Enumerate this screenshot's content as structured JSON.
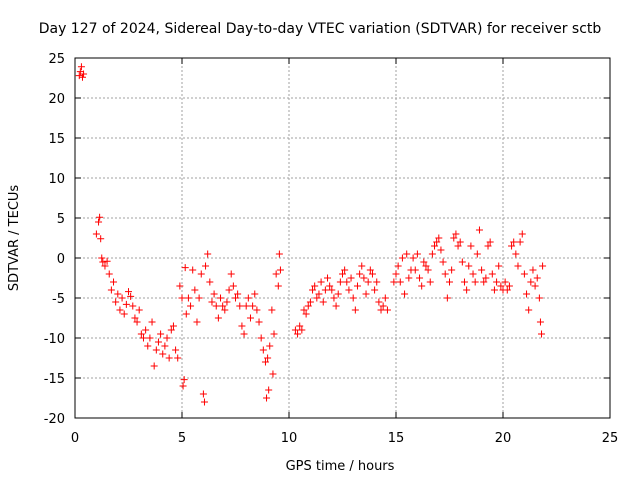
{
  "chart_data": {
    "type": "scatter",
    "title": "Day 127 of 2024, Sidereal Day-to-day VTEC variation (SDTVAR) for receiver sctb",
    "xlabel": "GPS time / hours",
    "ylabel": "SDTVAR / TECUs",
    "xlim": [
      0,
      25
    ],
    "ylim": [
      -20,
      25
    ],
    "x_ticks": [
      0,
      5,
      10,
      15,
      20,
      25
    ],
    "y_ticks": [
      -20,
      -15,
      -10,
      -5,
      0,
      5,
      10,
      15,
      20,
      25
    ],
    "grid": true,
    "marker": "plus",
    "color": "#ff0000",
    "series": [
      {
        "name": "sctb",
        "points": [
          [
            0.2,
            22.8
          ],
          [
            0.25,
            23.3
          ],
          [
            0.3,
            23.9
          ],
          [
            0.35,
            22.6
          ],
          [
            0.4,
            23.0
          ],
          [
            1.0,
            3.0
          ],
          [
            1.1,
            4.5
          ],
          [
            1.15,
            5.1
          ],
          [
            1.2,
            2.4
          ],
          [
            1.25,
            0.0
          ],
          [
            1.3,
            -0.5
          ],
          [
            1.4,
            -1.0
          ],
          [
            1.5,
            -0.4
          ],
          [
            1.6,
            -2.0
          ],
          [
            1.7,
            -4.0
          ],
          [
            1.8,
            -3.0
          ],
          [
            1.9,
            -5.5
          ],
          [
            2.0,
            -4.5
          ],
          [
            2.1,
            -6.5
          ],
          [
            2.2,
            -5.0
          ],
          [
            2.3,
            -7.0
          ],
          [
            2.4,
            -5.8
          ],
          [
            2.5,
            -4.2
          ],
          [
            2.6,
            -4.8
          ],
          [
            2.7,
            -6.0
          ],
          [
            2.8,
            -7.5
          ],
          [
            2.9,
            -8.0
          ],
          [
            3.0,
            -6.5
          ],
          [
            3.1,
            -9.5
          ],
          [
            3.2,
            -10.0
          ],
          [
            3.3,
            -9.0
          ],
          [
            3.4,
            -11.0
          ],
          [
            3.5,
            -10.0
          ],
          [
            3.6,
            -8.0
          ],
          [
            3.7,
            -13.5
          ],
          [
            3.8,
            -11.5
          ],
          [
            3.9,
            -10.5
          ],
          [
            4.0,
            -9.5
          ],
          [
            4.1,
            -12.0
          ],
          [
            4.2,
            -11.0
          ],
          [
            4.3,
            -10.0
          ],
          [
            4.4,
            -12.5
          ],
          [
            4.5,
            -9.0
          ],
          [
            4.6,
            -8.5
          ],
          [
            4.7,
            -11.5
          ],
          [
            4.8,
            -12.5
          ],
          [
            4.9,
            -3.5
          ],
          [
            5.0,
            -5.0
          ],
          [
            5.05,
            -16.0
          ],
          [
            5.1,
            -15.2
          ],
          [
            5.15,
            -1.2
          ],
          [
            5.2,
            -7.0
          ],
          [
            5.3,
            -5.0
          ],
          [
            5.4,
            -6.0
          ],
          [
            5.5,
            -1.5
          ],
          [
            5.6,
            -4.0
          ],
          [
            5.7,
            -8.0
          ],
          [
            5.8,
            -5.0
          ],
          [
            5.9,
            -2.0
          ],
          [
            6.0,
            -17.0
          ],
          [
            6.05,
            -18.0
          ],
          [
            6.1,
            -1.0
          ],
          [
            6.2,
            0.5
          ],
          [
            6.3,
            -3.0
          ],
          [
            6.4,
            -5.5
          ],
          [
            6.5,
            -4.5
          ],
          [
            6.6,
            -6.0
          ],
          [
            6.7,
            -7.5
          ],
          [
            6.8,
            -5.0
          ],
          [
            6.9,
            -6.0
          ],
          [
            7.0,
            -6.5
          ],
          [
            7.1,
            -5.5
          ],
          [
            7.2,
            -4.0
          ],
          [
            7.3,
            -2.0
          ],
          [
            7.4,
            -3.5
          ],
          [
            7.5,
            -5.0
          ],
          [
            7.6,
            -4.5
          ],
          [
            7.7,
            -6.0
          ],
          [
            7.8,
            -8.5
          ],
          [
            7.9,
            -9.5
          ],
          [
            8.0,
            -6.0
          ],
          [
            8.1,
            -5.0
          ],
          [
            8.2,
            -7.5
          ],
          [
            8.3,
            -6.0
          ],
          [
            8.4,
            -4.5
          ],
          [
            8.5,
            -6.5
          ],
          [
            8.6,
            -8.0
          ],
          [
            8.7,
            -10.0
          ],
          [
            8.8,
            -11.5
          ],
          [
            8.9,
            -13.0
          ],
          [
            8.95,
            -17.5
          ],
          [
            9.0,
            -12.5
          ],
          [
            9.05,
            -16.5
          ],
          [
            9.1,
            -11.0
          ],
          [
            9.2,
            -6.5
          ],
          [
            9.25,
            -14.5
          ],
          [
            9.3,
            -9.5
          ],
          [
            9.4,
            -2.0
          ],
          [
            9.5,
            -3.5
          ],
          [
            9.55,
            0.5
          ],
          [
            9.6,
            -1.5
          ],
          [
            10.3,
            -9.0
          ],
          [
            10.4,
            -9.5
          ],
          [
            10.5,
            -8.5
          ],
          [
            10.6,
            -9.0
          ],
          [
            10.7,
            -6.5
          ],
          [
            10.8,
            -7.0
          ],
          [
            10.9,
            -6.0
          ],
          [
            11.0,
            -5.5
          ],
          [
            11.1,
            -4.0
          ],
          [
            11.2,
            -3.5
          ],
          [
            11.3,
            -5.0
          ],
          [
            11.4,
            -4.5
          ],
          [
            11.5,
            -3.0
          ],
          [
            11.6,
            -5.5
          ],
          [
            11.7,
            -4.0
          ],
          [
            11.8,
            -2.5
          ],
          [
            11.9,
            -3.5
          ],
          [
            12.0,
            -4.0
          ],
          [
            12.1,
            -5.0
          ],
          [
            12.2,
            -6.0
          ],
          [
            12.3,
            -4.5
          ],
          [
            12.4,
            -3.0
          ],
          [
            12.5,
            -2.0
          ],
          [
            12.6,
            -1.5
          ],
          [
            12.7,
            -3.0
          ],
          [
            12.8,
            -4.0
          ],
          [
            12.9,
            -2.5
          ],
          [
            13.0,
            -5.0
          ],
          [
            13.1,
            -6.5
          ],
          [
            13.2,
            -3.5
          ],
          [
            13.3,
            -2.0
          ],
          [
            13.4,
            -1.0
          ],
          [
            13.5,
            -2.5
          ],
          [
            13.6,
            -4.5
          ],
          [
            13.7,
            -3.0
          ],
          [
            13.8,
            -1.5
          ],
          [
            13.9,
            -2.0
          ],
          [
            14.0,
            -4.0
          ],
          [
            14.1,
            -3.0
          ],
          [
            14.2,
            -5.5
          ],
          [
            14.3,
            -6.5
          ],
          [
            14.4,
            -6.0
          ],
          [
            14.5,
            -5.0
          ],
          [
            14.6,
            -6.5
          ],
          [
            14.9,
            -3.0
          ],
          [
            15.0,
            -2.0
          ],
          [
            15.1,
            -1.0
          ],
          [
            15.2,
            -3.0
          ],
          [
            15.3,
            0.0
          ],
          [
            15.4,
            -4.5
          ],
          [
            15.5,
            0.5
          ],
          [
            15.6,
            -2.5
          ],
          [
            15.7,
            -1.5
          ],
          [
            15.8,
            0.0
          ],
          [
            15.9,
            -1.5
          ],
          [
            16.0,
            0.5
          ],
          [
            16.1,
            -2.5
          ],
          [
            16.2,
            -3.5
          ],
          [
            16.3,
            -0.5
          ],
          [
            16.4,
            -1.0
          ],
          [
            16.5,
            -1.5
          ],
          [
            16.6,
            -3.0
          ],
          [
            16.7,
            0.5
          ],
          [
            16.8,
            1.5
          ],
          [
            16.9,
            2.0
          ],
          [
            17.0,
            2.5
          ],
          [
            17.1,
            1.0
          ],
          [
            17.2,
            -0.5
          ],
          [
            17.3,
            -2.0
          ],
          [
            17.4,
            -5.0
          ],
          [
            17.5,
            -3.0
          ],
          [
            17.6,
            -1.5
          ],
          [
            17.7,
            2.5
          ],
          [
            17.8,
            3.0
          ],
          [
            17.9,
            1.5
          ],
          [
            18.0,
            2.0
          ],
          [
            18.1,
            -0.5
          ],
          [
            18.2,
            -3.0
          ],
          [
            18.3,
            -4.0
          ],
          [
            18.4,
            -1.0
          ],
          [
            18.5,
            1.5
          ],
          [
            18.6,
            -2.0
          ],
          [
            18.7,
            -3.0
          ],
          [
            18.8,
            0.5
          ],
          [
            18.9,
            3.5
          ],
          [
            19.0,
            -1.5
          ],
          [
            19.1,
            -3.0
          ],
          [
            19.2,
            -2.5
          ],
          [
            19.3,
            1.5
          ],
          [
            19.4,
            2.0
          ],
          [
            19.5,
            -2.0
          ],
          [
            19.6,
            -4.0
          ],
          [
            19.7,
            -3.0
          ],
          [
            19.8,
            -1.0
          ],
          [
            19.9,
            -3.5
          ],
          [
            20.0,
            -4.0
          ],
          [
            20.1,
            -3.0
          ],
          [
            20.2,
            -4.0
          ],
          [
            20.3,
            -3.5
          ],
          [
            20.4,
            1.5
          ],
          [
            20.5,
            2.0
          ],
          [
            20.6,
            0.5
          ],
          [
            20.7,
            -1.0
          ],
          [
            20.8,
            2.0
          ],
          [
            20.9,
            3.0
          ],
          [
            21.0,
            -2.0
          ],
          [
            21.1,
            -4.5
          ],
          [
            21.2,
            -6.5
          ],
          [
            21.3,
            -3.0
          ],
          [
            21.4,
            -1.5
          ],
          [
            21.5,
            -3.5
          ],
          [
            21.6,
            -2.5
          ],
          [
            21.7,
            -5.0
          ],
          [
            21.75,
            -8.0
          ],
          [
            21.8,
            -9.5
          ],
          [
            21.85,
            -1.0
          ]
        ]
      }
    ]
  }
}
